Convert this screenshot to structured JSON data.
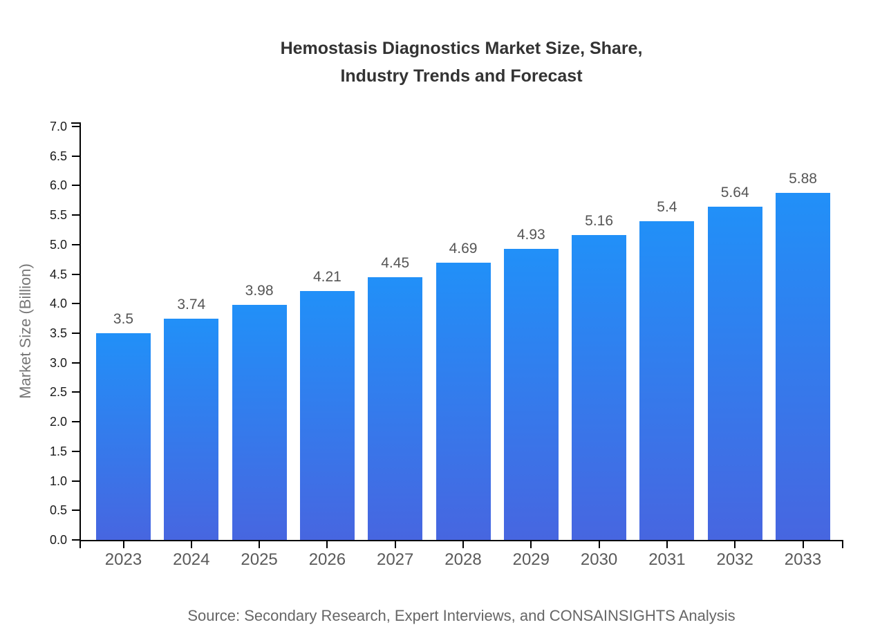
{
  "title": {
    "line1": "Hemostasis Diagnostics Market Size, Share,",
    "line2": "Industry Trends and Forecast"
  },
  "source_note": "Source: Secondary Research, Expert Interviews, and CONSAINSIGHTS Analysis",
  "chart_data": {
    "type": "bar",
    "title": "Hemostasis Diagnostics Market Size, Share, Industry Trends and Forecast",
    "categories": [
      "2023",
      "2024",
      "2025",
      "2026",
      "2027",
      "2028",
      "2029",
      "2030",
      "2031",
      "2032",
      "2033"
    ],
    "values": [
      3.5,
      3.74,
      3.98,
      4.21,
      4.45,
      4.69,
      4.93,
      5.16,
      5.4,
      5.64,
      5.88
    ],
    "data_labels": [
      "3.5",
      "3.74",
      "3.98",
      "4.21",
      "4.45",
      "4.69",
      "4.93",
      "5.16",
      "5.4",
      "5.64",
      "5.88"
    ],
    "xlabel": "",
    "ylabel": "Market Size (Billion)",
    "ylim": [
      0.0,
      7.0
    ],
    "ytick_step": 0.5,
    "ytick_labels": [
      "0.0",
      "0.5",
      "1.0",
      "1.5",
      "2.0",
      "2.5",
      "3.0",
      "3.5",
      "4.0",
      "4.5",
      "5.0",
      "5.5",
      "6.0",
      "6.5",
      "7.0"
    ],
    "grid": false,
    "legend": "none",
    "colors": {
      "bar_gradient_top": "#2190F8",
      "bar_gradient_bottom": "#4766E0",
      "axis": "#000000",
      "y_tick_label": "#1a1a1a",
      "x_tick_label": "#5a5a5a",
      "value_label": "#555555",
      "title": "#333333",
      "ylabel": "#777777",
      "source": "#666666",
      "background": "#ffffff"
    }
  }
}
